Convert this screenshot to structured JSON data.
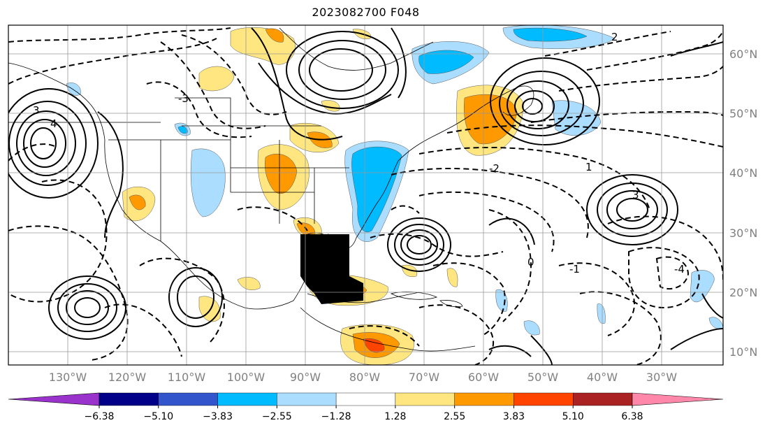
{
  "title": "2023082700 F048",
  "lon_labels": [
    "130°W",
    "120°W",
    "110°W",
    "100°W",
    "90°W",
    "80°W",
    "70°W",
    "60°W",
    "50°W",
    "40°W",
    "30°W"
  ],
  "lat_labels": [
    "60°N",
    "50°N",
    "40°N",
    "30°N",
    "20°N",
    "10°N"
  ],
  "colorbar": {
    "colors": [
      "#9933cc",
      "#000088",
      "#3355cc",
      "#00bbff",
      "#aaddff",
      "#ffffff",
      "#ffe680",
      "#ff9900",
      "#ff4400",
      "#aa2222",
      "#ff88aa"
    ],
    "labels": [
      "−6.38",
      "−5.10",
      "−3.83",
      "−2.55",
      "−1.28",
      "1.28",
      "2.55",
      "3.83",
      "5.10",
      "6.38"
    ]
  },
  "contour_labels": [
    "3",
    "-3",
    "2",
    "-2",
    "1",
    "-1",
    "0",
    "4",
    "3",
    "-4"
  ]
}
